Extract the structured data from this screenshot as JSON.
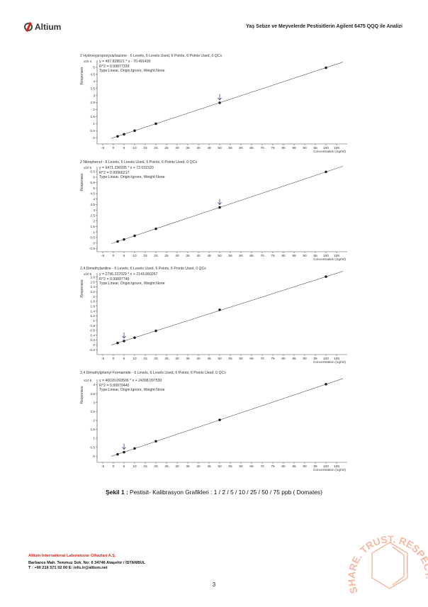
{
  "header": {
    "logo_text": "Altium",
    "title": "Yaş Sebze ve Meyvelerde Pestisitlerin Agilent 6475 QQQ ile Analizi"
  },
  "chart_data": [
    {
      "type": "scatter",
      "title": "2 Hydroxypropoxycarbazone - 6 Levels, 6 Levels Used, 6 Points, 6 Points Used, 0 QCs",
      "equation": "y = 497.828521 * x - 70.491430",
      "r2": "R^2 = 0.99877339",
      "fit_type": "Type:Linear, Origin:Ignore, Weight:None",
      "ylabel": "Responses",
      "y_multiplier": "x10 4",
      "xlabel": "Concentration (ng/ml)",
      "x": [
        2,
        5,
        10,
        20,
        50,
        100
      ],
      "y": [
        0.09,
        0.24,
        0.49,
        0.99,
        2.48,
        4.97
      ],
      "fit_line": {
        "slope": 0.0497828521,
        "intercept": -0.007049143
      },
      "marked_x": 50,
      "xlim": [
        -8,
        110
      ],
      "ylim": [
        -0.45,
        5.5
      ],
      "xticks": [
        -5,
        0,
        5,
        10,
        15,
        20,
        25,
        30,
        35,
        40,
        45,
        50,
        55,
        60,
        65,
        70,
        75,
        80,
        85,
        90,
        95,
        100,
        105
      ],
      "yticks": [
        0,
        0.5,
        1,
        1.5,
        2,
        2.5,
        3,
        3.5,
        4,
        4.5,
        5
      ]
    },
    {
      "type": "scatter",
      "title": "2 Nitrophenol - 6 Levels, 6 Levels Used, 6 Points, 6 Points Used, 0 QCs",
      "equation": "y = 6471.236935 * x + 72.031520",
      "r2": "R^2 = 0.99966217",
      "fit_type": "Type:Linear, Origin:Ignore, Weight:None",
      "ylabel": "Responses",
      "y_multiplier": "x10 5",
      "xlabel": "Concentration (ng/ml)",
      "x": [
        2,
        5,
        10,
        20,
        50,
        100
      ],
      "y": [
        0.13,
        0.32,
        0.65,
        1.29,
        3.24,
        6.47
      ],
      "fit_line": {
        "slope": 0.06471236935,
        "intercept": 0.0007203152
      },
      "marked_x": 50,
      "xlim": [
        -8,
        110
      ],
      "ylim": [
        -0.8,
        6.95
      ],
      "xticks": [
        -5,
        0,
        5,
        10,
        15,
        20,
        25,
        30,
        35,
        40,
        45,
        50,
        55,
        60,
        65,
        70,
        75,
        80,
        85,
        90,
        95,
        100,
        105
      ],
      "yticks": [
        -0.5,
        0,
        0.5,
        1,
        1.5,
        2,
        2.5,
        3,
        3.5,
        4,
        4.5,
        5,
        5.5,
        6,
        6.5
      ]
    },
    {
      "type": "scatter",
      "title": "2,4 Dimethylaniline - 6 Levels, 6 Levels Used, 6 Points, 6 Points Used, 0 QCs",
      "equation": "y = 2796.237029 * x + 2143.860267",
      "r2": "R^2 = 0.99897746",
      "fit_type": "Type:Linear, Origin:Ignore, Weight:None",
      "ylabel": "Responses",
      "y_multiplier": "x10 5",
      "xlabel": "Concentration (ng/ml)",
      "x": [
        2,
        5,
        10,
        20,
        50,
        100
      ],
      "y": [
        0.08,
        0.16,
        0.3,
        0.58,
        1.45,
        2.82
      ],
      "fit_line": {
        "slope": 0.02796237029,
        "intercept": 0.02143860267
      },
      "marked_x": 5,
      "xlim": [
        -8,
        110
      ],
      "ylim": [
        -0.4,
        2.97
      ],
      "xticks": [
        -5,
        0,
        5,
        10,
        15,
        20,
        25,
        30,
        35,
        40,
        45,
        50,
        55,
        60,
        65,
        70,
        75,
        80,
        85,
        90,
        95,
        100,
        105
      ],
      "yticks": [
        -0.2,
        0,
        0.2,
        0.4,
        0.6,
        0.8,
        1,
        1.2,
        1.4,
        1.6,
        1.8,
        2,
        2.2,
        2.4,
        2.6,
        2.8
      ]
    },
    {
      "type": "scatter",
      "title": "2,4 Dimethylphenyl Formamide - 6 Levels, 6 Levels Used, 6 Points, 6 Points Used, 0 QCs",
      "equation": "y = 40020.093506 * x + 24398.097530",
      "r2": "R^2 = 0.99970440",
      "fit_type": "Type:Linear, Origin:Ignore, Weight:None",
      "ylabel": "Responses",
      "y_multiplier": "x10 6",
      "xlabel": "Concentration (ng/ml)",
      "x": [
        2,
        5,
        10,
        20,
        50,
        100
      ],
      "y": [
        0.1,
        0.22,
        0.43,
        0.83,
        2.03,
        4.03
      ],
      "fit_line": {
        "slope": 0.040020093506,
        "intercept": 0.02439809753
      },
      "marked_x": 5,
      "xlim": [
        -8,
        110
      ],
      "ylim": [
        -0.35,
        4.3
      ],
      "xticks": [
        -5,
        0,
        5,
        10,
        15,
        20,
        25,
        30,
        35,
        40,
        45,
        50,
        55,
        60,
        65,
        70,
        75,
        80,
        85,
        90,
        95,
        100,
        105
      ],
      "yticks": [
        0,
        0.5,
        1,
        1.5,
        2,
        2.5,
        3,
        3.5,
        4
      ]
    }
  ],
  "caption": {
    "label": "Şekil 1 :",
    "text": " Pestisit- Kalibrasyon Grafikleri : 1 / 2 / 5 / 10 / 25 / 50 / 75 ppb ( Domates)"
  },
  "footer": {
    "company": "Altium International Laboratuvar Cihazları A.Ş.",
    "address": "Barbaros Mah. Temmuz Sok. No: 6  34746 Ataşehir / İSTANBUL",
    "contact": "T : +90 216 571 02 00  E: info.tr@altium.net"
  },
  "page_number": "3",
  "watermark": {
    "text": "SHARE. TRUST. RESPECT. DEVELOP",
    "color": "#f4b9a3"
  },
  "colors": {
    "brand_red": "#e2231a",
    "marker": "#222222",
    "arrow": "#3a3a8a",
    "line": "#555555"
  }
}
